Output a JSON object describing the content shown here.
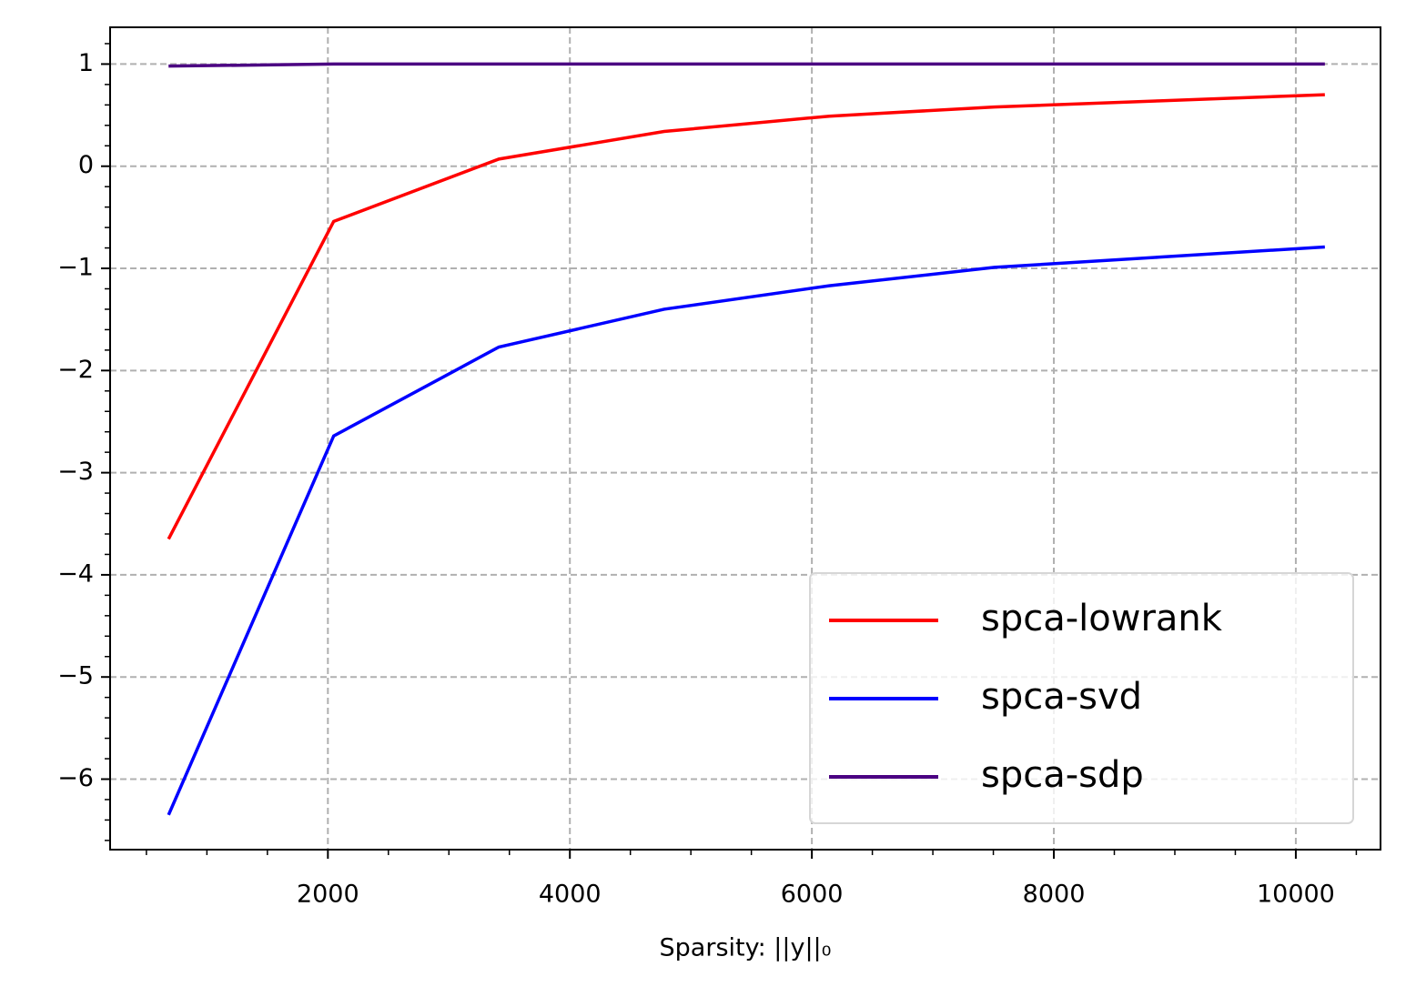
{
  "chart_data": {
    "type": "line",
    "xlabel": "Sparsity: ||y||₀",
    "x": [
      683,
      2048,
      3413,
      4779,
      6144,
      7509,
      8875,
      10240
    ],
    "series": [
      {
        "name": "spca-lowrank",
        "color": "#ff0000",
        "values": [
          -3.65,
          -0.54,
          0.07,
          0.34,
          0.49,
          0.58,
          0.64,
          0.7
        ]
      },
      {
        "name": "spca-svd",
        "color": "#0000ff",
        "values": [
          -6.35,
          -2.64,
          -1.77,
          -1.4,
          -1.17,
          -0.99,
          -0.89,
          -0.79
        ]
      },
      {
        "name": "spca-sdp",
        "color": "#4b0082",
        "values": [
          0.98,
          1.0,
          1.0,
          1.0,
          1.0,
          1.0,
          1.0,
          1.0
        ]
      }
    ],
    "xlim": [
      200,
      10700
    ],
    "ylim": [
      -6.69,
      1.36
    ],
    "xticks": [
      2000,
      4000,
      6000,
      8000,
      10000
    ],
    "yticks": [
      {
        "value": -6,
        "label": "−6"
      },
      {
        "value": -5,
        "label": "−5"
      },
      {
        "value": -4,
        "label": "−4"
      },
      {
        "value": -3,
        "label": "−3"
      },
      {
        "value": -2,
        "label": "−2"
      },
      {
        "value": -1,
        "label": "−1"
      },
      0,
      1
    ],
    "xminorticks": [
      500,
      1000,
      1500,
      2500,
      3000,
      3500,
      4500,
      5000,
      5500,
      6500,
      7000,
      7500,
      8500,
      9000,
      9500,
      10500
    ],
    "yminorticks": [
      -6.6,
      -6.4,
      -6.2,
      -5.8,
      -5.6,
      -5.4,
      -5.2,
      -4.8,
      -4.6,
      -4.4,
      -4.2,
      -3.8,
      -3.6,
      -3.4,
      -3.2,
      -2.8,
      -2.6,
      -2.4,
      -2.2,
      -1.8,
      -1.6,
      -1.4,
      -1.2,
      -0.8,
      -0.6,
      -0.4,
      -0.2,
      0.2,
      0.4,
      0.6,
      0.8,
      1.2
    ],
    "grid": true,
    "legend": "lower right"
  }
}
